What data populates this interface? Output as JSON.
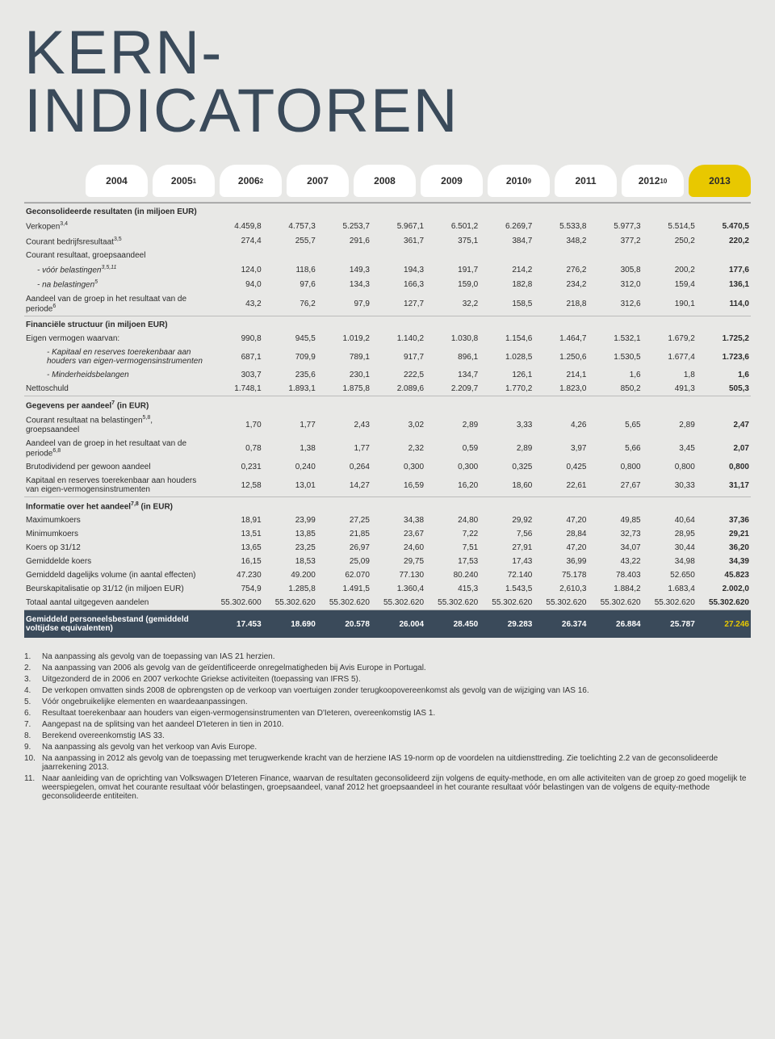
{
  "title_line1": "KERN-",
  "title_line2": "INDICATOREN",
  "years": [
    {
      "y": "2004",
      "sup": ""
    },
    {
      "y": "2005",
      "sup": "1"
    },
    {
      "y": "2006",
      "sup": "2"
    },
    {
      "y": "2007",
      "sup": ""
    },
    {
      "y": "2008",
      "sup": ""
    },
    {
      "y": "2009",
      "sup": ""
    },
    {
      "y": "2010",
      "sup": "9"
    },
    {
      "y": "2011",
      "sup": ""
    },
    {
      "y": "2012",
      "sup": "10"
    },
    {
      "y": "2013",
      "sup": ""
    }
  ],
  "sections": [
    {
      "type": "section",
      "label": "Geconsolideerde resultaten (in miljoen EUR)",
      "values": [
        "",
        "",
        "",
        "",
        "",
        "",
        "",
        "",
        "",
        ""
      ]
    },
    {
      "type": "row",
      "label": "Verkopen",
      "sup": "3,4",
      "values": [
        "4.459,8",
        "4.757,3",
        "5.253,7",
        "5.967,1",
        "6.501,2",
        "6.269,7",
        "5.533,8",
        "5.977,3",
        "5.514,5",
        "5.470,5"
      ]
    },
    {
      "type": "row",
      "label": "Courant bedrijfsresultaat",
      "sup": "3,5",
      "values": [
        "274,4",
        "255,7",
        "291,6",
        "361,7",
        "375,1",
        "384,7",
        "348,2",
        "377,2",
        "250,2",
        "220,2"
      ]
    },
    {
      "type": "row",
      "label": "Courant resultaat, groepsaandeel",
      "values": [
        "",
        "",
        "",
        "",
        "",
        "",
        "",
        "",
        "",
        ""
      ]
    },
    {
      "type": "indent1",
      "label": "- vóór belastingen",
      "sup": "3,5,11",
      "values": [
        "124,0",
        "118,6",
        "149,3",
        "194,3",
        "191,7",
        "214,2",
        "276,2",
        "305,8",
        "200,2",
        "177,6"
      ]
    },
    {
      "type": "indent1",
      "label": "- na belastingen",
      "sup": "5",
      "values": [
        "94,0",
        "97,6",
        "134,3",
        "166,3",
        "159,0",
        "182,8",
        "234,2",
        "312,0",
        "159,4",
        "136,1"
      ]
    },
    {
      "type": "row",
      "label": "Aandeel van de groep in het resultaat van de periode",
      "sup": "6",
      "underline": true,
      "values": [
        "43,2",
        "76,2",
        "97,9",
        "127,7",
        "32,2",
        "158,5",
        "218,8",
        "312,6",
        "190,1",
        "114,0"
      ]
    },
    {
      "type": "section",
      "label": "Financiële structuur (in miljoen EUR)",
      "values": [
        "",
        "",
        "",
        "",
        "",
        "",
        "",
        "",
        "",
        ""
      ]
    },
    {
      "type": "row",
      "label": "Eigen vermogen waarvan:",
      "values": [
        "990,8",
        "945,5",
        "1.019,2",
        "1.140,2",
        "1.030,8",
        "1.154,6",
        "1.464,7",
        "1.532,1",
        "1.679,2",
        "1.725,2"
      ]
    },
    {
      "type": "indent2",
      "label": "- Kapitaal en reserves toerekenbaar aan houders van eigen-vermogensinstrumenten",
      "values": [
        "687,1",
        "709,9",
        "789,1",
        "917,7",
        "896,1",
        "1.028,5",
        "1.250,6",
        "1.530,5",
        "1.677,4",
        "1.723,6"
      ]
    },
    {
      "type": "indent2",
      "label": "- Minderheidsbelangen",
      "values": [
        "303,7",
        "235,6",
        "230,1",
        "222,5",
        "134,7",
        "126,1",
        "214,1",
        "1,6",
        "1,8",
        "1,6"
      ]
    },
    {
      "type": "row",
      "label": "Nettoschuld",
      "underline": true,
      "values": [
        "1.748,1",
        "1.893,1",
        "1.875,8",
        "2.089,6",
        "2.209,7",
        "1.770,2",
        "1.823,0",
        "850,2",
        "491,3",
        "505,3"
      ]
    },
    {
      "type": "section",
      "label": "Gegevens per aandeel",
      "sup": "7",
      "label2": " (in EUR)",
      "values": [
        "",
        "",
        "",
        "",
        "",
        "",
        "",
        "",
        "",
        ""
      ]
    },
    {
      "type": "row",
      "label": "Courant resultaat na belastingen",
      "sup": "5,8",
      "label2": ", groepsaandeel",
      "values": [
        "1,70",
        "1,77",
        "2,43",
        "3,02",
        "2,89",
        "3,33",
        "4,26",
        "5,65",
        "2,89",
        "2,47"
      ]
    },
    {
      "type": "row",
      "label": "Aandeel van de groep in het resultaat van de periode",
      "sup": "6,8",
      "values": [
        "0,78",
        "1,38",
        "1,77",
        "2,32",
        "0,59",
        "2,89",
        "3,97",
        "5,66",
        "3,45",
        "2,07"
      ]
    },
    {
      "type": "row",
      "label": "Brutodividend per gewoon aandeel",
      "values": [
        "0,231",
        "0,240",
        "0,264",
        "0,300",
        "0,300",
        "0,325",
        "0,425",
        "0,800",
        "0,800",
        "0,800"
      ]
    },
    {
      "type": "row",
      "label": "Kapitaal en reserves toerekenbaar aan houders van eigen-vermogensinstrumenten",
      "underline": true,
      "values": [
        "12,58",
        "13,01",
        "14,27",
        "16,59",
        "16,20",
        "18,60",
        "22,61",
        "27,67",
        "30,33",
        "31,17"
      ]
    },
    {
      "type": "section",
      "label": "Informatie over het aandeel",
      "sup": "7,8",
      "label2": " (in EUR)",
      "values": [
        "",
        "",
        "",
        "",
        "",
        "",
        "",
        "",
        "",
        ""
      ]
    },
    {
      "type": "row",
      "label": "Maximumkoers",
      "values": [
        "18,91",
        "23,99",
        "27,25",
        "34,38",
        "24,80",
        "29,92",
        "47,20",
        "49,85",
        "40,64",
        "37,36"
      ]
    },
    {
      "type": "row",
      "label": "Minimumkoers",
      "values": [
        "13,51",
        "13,85",
        "21,85",
        "23,67",
        "7,22",
        "7,56",
        "28,84",
        "32,73",
        "28,95",
        "29,21"
      ]
    },
    {
      "type": "row",
      "label": "Koers op 31/12",
      "values": [
        "13,65",
        "23,25",
        "26,97",
        "24,60",
        "7,51",
        "27,91",
        "47,20",
        "34,07",
        "30,44",
        "36,20"
      ]
    },
    {
      "type": "row",
      "label": "Gemiddelde koers",
      "values": [
        "16,15",
        "18,53",
        "25,09",
        "29,75",
        "17,53",
        "17,43",
        "36,99",
        "43,22",
        "34,98",
        "34,39"
      ]
    },
    {
      "type": "row",
      "label": "Gemiddeld dagelijks volume (in aantal effecten)",
      "values": [
        "47.230",
        "49.200",
        "62.070",
        "77.130",
        "80.240",
        "72.140",
        "75.178",
        "78.403",
        "52.650",
        "45.823"
      ]
    },
    {
      "type": "row",
      "label": "Beurskapitalisatie op 31/12 (in miljoen EUR)",
      "values": [
        "754,9",
        "1.285,8",
        "1.491,5",
        "1.360,4",
        "415,3",
        "1.543,5",
        "2,610,3",
        "1.884,2",
        "1.683,4",
        "2.002,0"
      ]
    },
    {
      "type": "row",
      "label": "Totaal aantal uitgegeven aandelen",
      "underline": true,
      "values": [
        "55.302.600",
        "55.302.620",
        "55.302.620",
        "55.302.620",
        "55.302.620",
        "55.302.620",
        "55.302.620",
        "55.302.620",
        "55.302.620",
        "55.302.620"
      ]
    },
    {
      "type": "darkrow",
      "label": "Gemiddeld personeelsbestand (gemiddeld voltijdse equivalenten)",
      "values": [
        "17.453",
        "18.690",
        "20.578",
        "26.004",
        "28.450",
        "29.283",
        "26.374",
        "26.884",
        "25.787",
        "27.246"
      ]
    }
  ],
  "footnotes": [
    {
      "n": "1.",
      "t": "Na aanpassing als gevolg van de toepassing van IAS 21 herzien."
    },
    {
      "n": "2.",
      "t": "Na aanpassing van 2006 als gevolg van de geïdentificeerde onregelmatigheden bij Avis Europe in Portugal."
    },
    {
      "n": "3.",
      "t": "Uitgezonderd de in 2006 en 2007 verkochte Griekse activiteiten (toepassing van IFRS 5)."
    },
    {
      "n": "4.",
      "t": "De verkopen omvatten sinds 2008 de opbrengsten op de verkoop van voertuigen zonder terugkoopovereenkomst als gevolg van de wijziging van IAS 16."
    },
    {
      "n": "5.",
      "t": "Vóór ongebruikelijke elementen en waardeaanpassingen."
    },
    {
      "n": "6.",
      "t": "Resultaat toerekenbaar aan houders van eigen-vermogensinstrumenten van D'Ieteren, overeenkomstig IAS 1."
    },
    {
      "n": "7.",
      "t": "Aangepast na de splitsing van het aandeel D'Ieteren in tien in 2010."
    },
    {
      "n": "8.",
      "t": "Berekend overeenkomstig IAS 33."
    },
    {
      "n": "9.",
      "t": "Na aanpassing als gevolg van het verkoop van Avis Europe."
    },
    {
      "n": "10.",
      "t": "Na aanpassing in 2012 als gevolg van de toepassing met terugwerkende kracht van de herziene IAS 19-norm op de voordelen na uitdiensttreding. Zie toelichting 2.2 van de geconsolideerde jaarrekening 2013."
    },
    {
      "n": "11.",
      "t": "Naar aanleiding van de oprichting van Volkswagen D'Ieteren Finance, waarvan de resultaten geconsolideerd zijn volgens de equity-methode, en om alle activiteiten van de groep zo goed mogelijk te weerspiegelen, omvat het courante resultaat vóór belastingen, groepsaandeel, vanaf 2012 het groepsaandeel in het courante resultaat vóór belastingen van de volgens de equity-methode geconsolideerde entiteiten."
    }
  ]
}
